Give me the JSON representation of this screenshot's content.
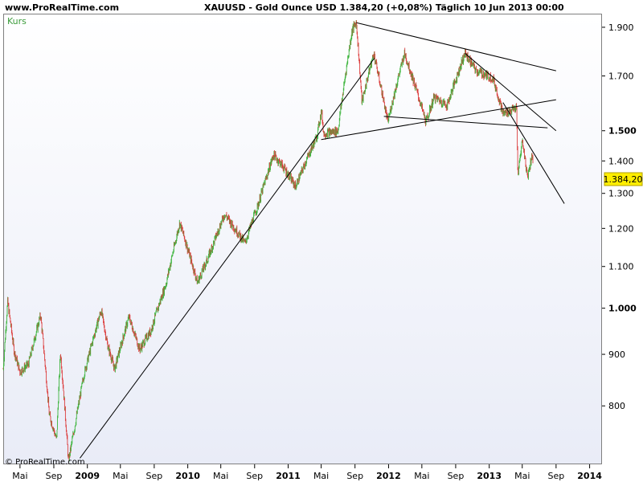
{
  "header": {
    "site": "www.ProRealTime.com",
    "instrument_info": "XAUUSD - Gold Ounce USD     1.384,20 (+0,08%)    Täglich  10 Jun 2013 00:00"
  },
  "colors": {
    "up_candle": "#3cb43c",
    "down_candle": "#dc3c3c",
    "trendline": "#000000",
    "legend_text": "#3c9c3c",
    "price_badge_bg": "#ffee00",
    "price_badge_border": "#b0a000"
  },
  "icons": {
    "copyright": "copyright-icon"
  },
  "chart_data": {
    "type": "candlestick",
    "title": "XAUUSD - Gold Ounce USD",
    "legend": [
      "Kurs"
    ],
    "last_price_label": "1.384,20",
    "y_scale": "log",
    "ylim": [
      700,
      1960
    ],
    "y_ticks": [
      {
        "value": 800,
        "label": "800",
        "major": false
      },
      {
        "value": 900,
        "label": "900",
        "major": false
      },
      {
        "value": 1000,
        "label": "1.000",
        "major": true
      },
      {
        "value": 1100,
        "label": "1.100",
        "major": false
      },
      {
        "value": 1200,
        "label": "1.200",
        "major": false
      },
      {
        "value": 1300,
        "label": "1.300",
        "major": false
      },
      {
        "value": 1400,
        "label": "1.400",
        "major": false
      },
      {
        "value": 1500,
        "label": "1.500",
        "major": true
      },
      {
        "value": 1700,
        "label": "1.700",
        "major": false
      },
      {
        "value": 1900,
        "label": "1.900",
        "major": false
      }
    ],
    "x_range": [
      "2008-03-01",
      "2014-02-15"
    ],
    "x_ticks": [
      {
        "date": "2008-05-01",
        "label": "Mai",
        "year": false
      },
      {
        "date": "2008-09-01",
        "label": "Sep",
        "year": false
      },
      {
        "date": "2009-01-01",
        "label": "2009",
        "year": true
      },
      {
        "date": "2009-05-01",
        "label": "Mai",
        "year": false
      },
      {
        "date": "2009-09-01",
        "label": "Sep",
        "year": false
      },
      {
        "date": "2010-01-01",
        "label": "2010",
        "year": true
      },
      {
        "date": "2010-05-01",
        "label": "Mai",
        "year": false
      },
      {
        "date": "2010-09-01",
        "label": "Sep",
        "year": false
      },
      {
        "date": "2011-01-01",
        "label": "2011",
        "year": true
      },
      {
        "date": "2011-05-01",
        "label": "Mai",
        "year": false
      },
      {
        "date": "2011-09-01",
        "label": "Sep",
        "year": false
      },
      {
        "date": "2012-01-01",
        "label": "2012",
        "year": true
      },
      {
        "date": "2012-05-01",
        "label": "Mai",
        "year": false
      },
      {
        "date": "2012-09-01",
        "label": "Sep",
        "year": false
      },
      {
        "date": "2013-01-01",
        "label": "2013",
        "year": true
      },
      {
        "date": "2013-05-01",
        "label": "Mai",
        "year": false
      },
      {
        "date": "2013-09-01",
        "label": "Sep",
        "year": false
      },
      {
        "date": "2014-01-01",
        "label": "2014",
        "year": true
      }
    ],
    "price_path": [
      [
        "2008-03-01",
        870
      ],
      [
        "2008-03-17",
        1015
      ],
      [
        "2008-04-10",
        905
      ],
      [
        "2008-05-01",
        865
      ],
      [
        "2008-06-01",
        880
      ],
      [
        "2008-07-15",
        985
      ],
      [
        "2008-08-15",
        785
      ],
      [
        "2008-09-11",
        740
      ],
      [
        "2008-09-25",
        905
      ],
      [
        "2008-10-24",
        705
      ],
      [
        "2008-11-15",
        760
      ],
      [
        "2008-12-20",
        860
      ],
      [
        "2009-02-20",
        995
      ],
      [
        "2009-03-15",
        920
      ],
      [
        "2009-04-10",
        870
      ],
      [
        "2009-06-01",
        980
      ],
      [
        "2009-07-10",
        910
      ],
      [
        "2009-08-20",
        950
      ],
      [
        "2009-10-15",
        1060
      ],
      [
        "2009-12-03",
        1215
      ],
      [
        "2010-02-05",
        1060
      ],
      [
        "2010-03-15",
        1120
      ],
      [
        "2010-05-15",
        1240
      ],
      [
        "2010-07-28",
        1160
      ],
      [
        "2010-09-15",
        1270
      ],
      [
        "2010-11-09",
        1420
      ],
      [
        "2010-12-15",
        1380
      ],
      [
        "2011-01-28",
        1320
      ],
      [
        "2011-04-15",
        1480
      ],
      [
        "2011-05-02",
        1570
      ],
      [
        "2011-05-10",
        1490
      ],
      [
        "2011-07-01",
        1500
      ],
      [
        "2011-08-22",
        1890
      ],
      [
        "2011-09-06",
        1920
      ],
      [
        "2011-09-26",
        1600
      ],
      [
        "2011-11-08",
        1790
      ],
      [
        "2011-12-29",
        1530
      ],
      [
        "2012-02-28",
        1790
      ],
      [
        "2012-05-16",
        1530
      ],
      [
        "2012-06-15",
        1620
      ],
      [
        "2012-08-01",
        1590
      ],
      [
        "2012-10-05",
        1790
      ],
      [
        "2012-11-15",
        1720
      ],
      [
        "2013-01-15",
        1690
      ],
      [
        "2013-02-20",
        1560
      ],
      [
        "2013-04-10",
        1580
      ],
      [
        "2013-04-15",
        1350
      ],
      [
        "2013-05-01",
        1470
      ],
      [
        "2013-05-20",
        1350
      ],
      [
        "2013-06-06",
        1420
      ],
      [
        "2013-06-10",
        1384
      ]
    ],
    "trendlines": [
      [
        [
          "2008-12-05",
          710
        ],
        [
          "2011-11-10",
          1770
        ]
      ],
      [
        [
          "2011-09-06",
          1920
        ],
        [
          "2013-09-01",
          1720
        ]
      ],
      [
        [
          "2012-10-05",
          1790
        ],
        [
          "2013-09-01",
          1500
        ]
      ],
      [
        [
          "2011-05-01",
          1470
        ],
        [
          "2013-09-01",
          1610
        ]
      ],
      [
        [
          "2011-12-15",
          1550
        ],
        [
          "2013-08-01",
          1510
        ]
      ],
      [
        [
          "2013-02-20",
          1600
        ],
        [
          "2013-10-01",
          1270
        ]
      ]
    ]
  },
  "copyright": "© ProRealTime.com"
}
